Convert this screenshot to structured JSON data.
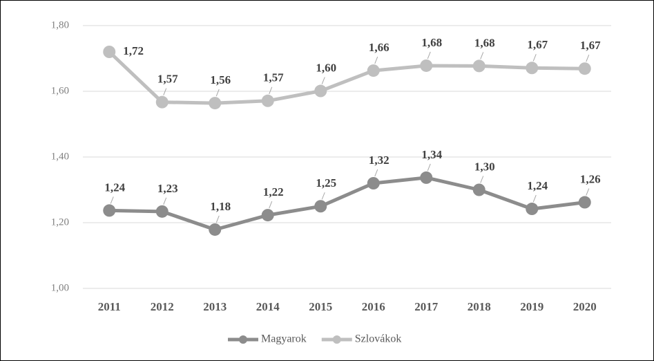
{
  "chart_data": {
    "type": "line",
    "categories": [
      "2011",
      "2012",
      "2013",
      "2014",
      "2015",
      "2016",
      "2017",
      "2018",
      "2019",
      "2020"
    ],
    "series": [
      {
        "name": "Magyarok",
        "color": "#8c8c8c",
        "values": [
          1.237,
          1.234,
          1.179,
          1.223,
          1.25,
          1.32,
          1.337,
          1.3,
          1.242,
          1.262
        ],
        "value_labels": [
          "1,24",
          "1,23",
          "1,18",
          "1,22",
          "1,25",
          "1,32",
          "1,34",
          "1,30",
          "1,24",
          "1,26"
        ]
      },
      {
        "name": "Szlovákok",
        "color": "#bfbfbf",
        "values": [
          1.72,
          1.567,
          1.564,
          1.571,
          1.601,
          1.663,
          1.678,
          1.677,
          1.671,
          1.669
        ],
        "value_labels": [
          "1,72",
          "1,57",
          "1,56",
          "1,57",
          "1,60",
          "1,66",
          "1,68",
          "1,68",
          "1,67",
          "1,67"
        ]
      }
    ],
    "ylim": [
      1.0,
      1.8
    ],
    "yticks": [
      {
        "value": 1.0,
        "label": "1,00"
      },
      {
        "value": 1.2,
        "label": "1,20"
      },
      {
        "value": 1.4,
        "label": "1,40"
      },
      {
        "value": 1.6,
        "label": "1,60"
      },
      {
        "value": 1.8,
        "label": "1,80"
      }
    ],
    "grid": true,
    "legend": "bottom"
  }
}
